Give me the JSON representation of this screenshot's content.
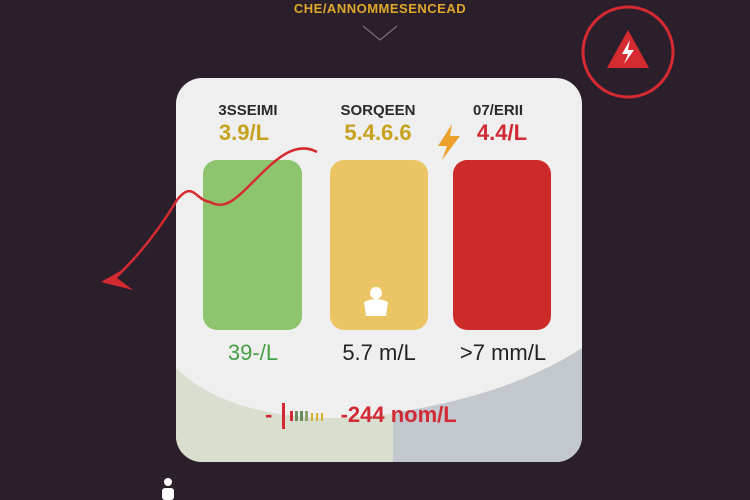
{
  "header": {
    "title": "CHE/ANNOMMESENCEAD"
  },
  "warning": {
    "icon": "warning-lightning-icon",
    "color": "#d62a31"
  },
  "columns": [
    {
      "label": "3SSEIMI",
      "value": "3.9/L",
      "reading": "39-/L",
      "color": "#8dc46d",
      "value_color": "#c7a21e",
      "reading_color": "#45a045"
    },
    {
      "label": "SORQEEN",
      "value": "5.4.6.6",
      "reading": "5.7 m/L",
      "color": "#ebc463",
      "value_color": "#c7a21e",
      "reading_color": "#222222"
    },
    {
      "label": "07/ERII",
      "value": "4.4/L",
      "reading": ">7 mm/L",
      "color": "#cd2a2a",
      "value_color": "#d22a34",
      "reading_color": "#222222"
    }
  ],
  "summary": {
    "prefix": "-",
    "value": "-244 nom/L"
  },
  "icons": [
    "trend-arrow-icon",
    "lightning-icon",
    "person-icon"
  ]
}
